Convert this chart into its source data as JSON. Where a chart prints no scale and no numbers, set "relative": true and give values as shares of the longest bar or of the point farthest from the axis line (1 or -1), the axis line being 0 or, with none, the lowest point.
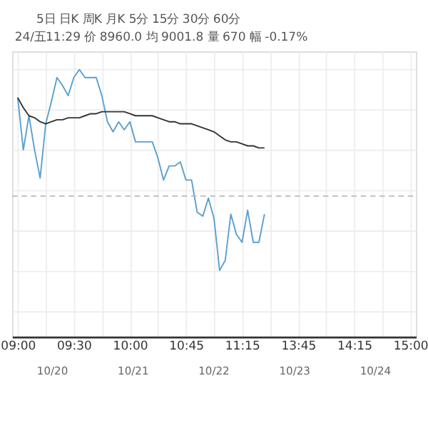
{
  "chart_data": {
    "type": "line",
    "relative": true,
    "annotations": [
      "5日    日K    周K    月K    5分    15分    30分    60分",
      "24/五11:29  价 8960.0  均 9001.8  量 670  幅 -0.17%",
      "10/20",
      "10/21",
      "10/22",
      "10/23",
      "10/24"
    ],
    "categories": [
      "09:00",
      null,
      null,
      null,
      null,
      null,
      null,
      null,
      null,
      null,
      "09:30",
      null,
      null,
      null,
      null,
      null,
      null,
      null,
      null,
      null,
      "10:00",
      null,
      null,
      null,
      null,
      null,
      null,
      null,
      null,
      null,
      "10:45",
      null,
      null,
      null,
      null,
      null,
      null,
      null,
      null,
      null,
      "11:15",
      null,
      null,
      null,
      null,
      null,
      null,
      null,
      null,
      null,
      "13:45",
      null,
      null,
      null,
      null,
      null,
      null,
      null,
      null,
      null,
      "14:15",
      null,
      null,
      null,
      null,
      null,
      null,
      null,
      null,
      null,
      "15:00"
    ],
    "grid": true,
    "ref_lines": [
      {
        "axis": "y",
        "value": 0.37,
        "color": "#bbbbbb",
        "line_style": "dashed"
      }
    ],
    "series": [
      {
        "color": "#5a9fcf",
        "values": [
          0.86,
          0.6,
          0.77,
          0.6,
          0.46,
          0.73,
          0.84,
          0.96,
          0.92,
          0.87,
          0.96,
          1.0,
          0.96,
          0.96,
          0.96,
          0.87,
          0.74,
          0.69,
          0.74,
          0.7,
          0.74,
          0.64,
          0.64,
          0.64,
          0.64,
          0.56,
          0.45,
          0.52,
          0.52,
          0.54,
          0.45,
          0.45,
          0.29,
          0.27,
          0.36,
          0.26,
          0.0,
          0.05,
          0.28,
          0.18,
          0.14,
          0.3,
          0.14,
          0.14,
          0.28,
          null,
          null,
          null,
          null,
          null,
          null,
          null,
          null,
          null,
          null,
          null,
          null,
          null,
          null,
          null,
          null,
          null,
          null,
          null,
          null,
          null,
          null,
          null,
          null,
          null,
          null
        ]
      },
      {
        "color": "#333333",
        "values": [
          0.86,
          0.81,
          0.77,
          0.76,
          0.74,
          0.73,
          0.74,
          0.75,
          0.75,
          0.76,
          0.76,
          0.76,
          0.77,
          0.78,
          0.78,
          0.79,
          0.79,
          0.79,
          0.79,
          0.79,
          0.78,
          0.77,
          0.77,
          0.77,
          0.77,
          0.76,
          0.75,
          0.74,
          0.74,
          0.73,
          0.73,
          0.73,
          0.72,
          0.71,
          0.7,
          0.69,
          0.67,
          0.65,
          0.64,
          0.64,
          0.63,
          0.62,
          0.62,
          0.61,
          0.61,
          null,
          null,
          null,
          null,
          null,
          null,
          null,
          null,
          null,
          null,
          null,
          null,
          null,
          null,
          null,
          null,
          null,
          null,
          null,
          null,
          null,
          null,
          null,
          null,
          null,
          null
        ]
      }
    ]
  }
}
